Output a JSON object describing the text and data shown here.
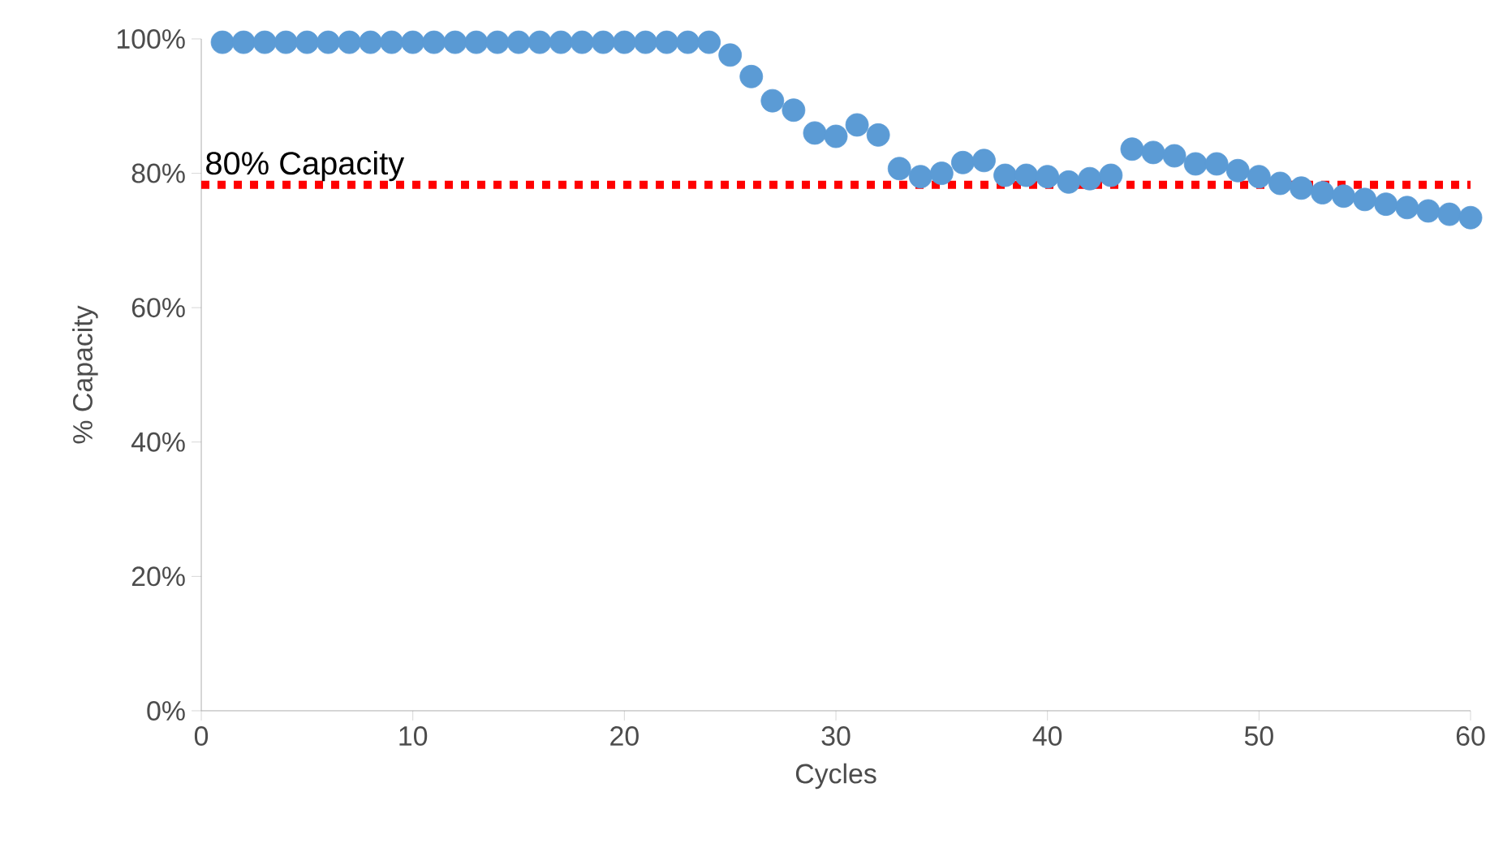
{
  "chart_data": {
    "type": "scatter",
    "xlabel": "Cycles",
    "ylabel": "% Capacity",
    "x": [
      1,
      2,
      3,
      4,
      5,
      6,
      7,
      8,
      9,
      10,
      11,
      12,
      13,
      14,
      15,
      16,
      17,
      18,
      19,
      20,
      21,
      22,
      23,
      24,
      25,
      26,
      27,
      28,
      29,
      30,
      31,
      32,
      33,
      34,
      35,
      36,
      37,
      38,
      39,
      40,
      41,
      42,
      43,
      44,
      45,
      46,
      47,
      48,
      49,
      50,
      51,
      52,
      53,
      54,
      55,
      56,
      57,
      58,
      59,
      60
    ],
    "series": [
      {
        "color": "#5b9bd5",
        "values": [
          99.5,
          99.5,
          99.5,
          99.5,
          99.5,
          99.5,
          99.5,
          99.5,
          99.5,
          99.5,
          99.5,
          99.5,
          99.5,
          99.5,
          99.5,
          99.5,
          99.5,
          99.5,
          99.5,
          99.5,
          99.5,
          99.5,
          99.5,
          99.5,
          97.6,
          94.4,
          90.8,
          89.4,
          86,
          85.5,
          87.2,
          85.7,
          80.7,
          79.5,
          80,
          81.6,
          81.9,
          79.7,
          79.7,
          79.5,
          78.7,
          79.2,
          79.7,
          83.6,
          83.1,
          82.6,
          81.4,
          81.4,
          80.4,
          79.5,
          78.5,
          77.8,
          77.1,
          76.6,
          76.1,
          75.4,
          74.9,
          74.4,
          73.9,
          73.4
        ]
      }
    ],
    "marker": "circle",
    "xlim": [
      0,
      60
    ],
    "xticks": [
      0,
      10,
      20,
      30,
      40,
      50,
      60
    ],
    "ylim": [
      0,
      100
    ],
    "yticks": [
      {
        "value": 0,
        "label": "0%"
      },
      {
        "value": 20,
        "label": "20%"
      },
      {
        "value": 40,
        "label": "40%"
      },
      {
        "value": 60,
        "label": "60%"
      },
      {
        "value": 80,
        "label": "80%"
      },
      {
        "value": 100,
        "label": "100%"
      }
    ],
    "ref_lines": [
      {
        "axis": "y",
        "value": 78.3,
        "label": "80% Capacity",
        "color": "#ff0000",
        "line_style": "dotted"
      }
    ],
    "grid": false
  }
}
